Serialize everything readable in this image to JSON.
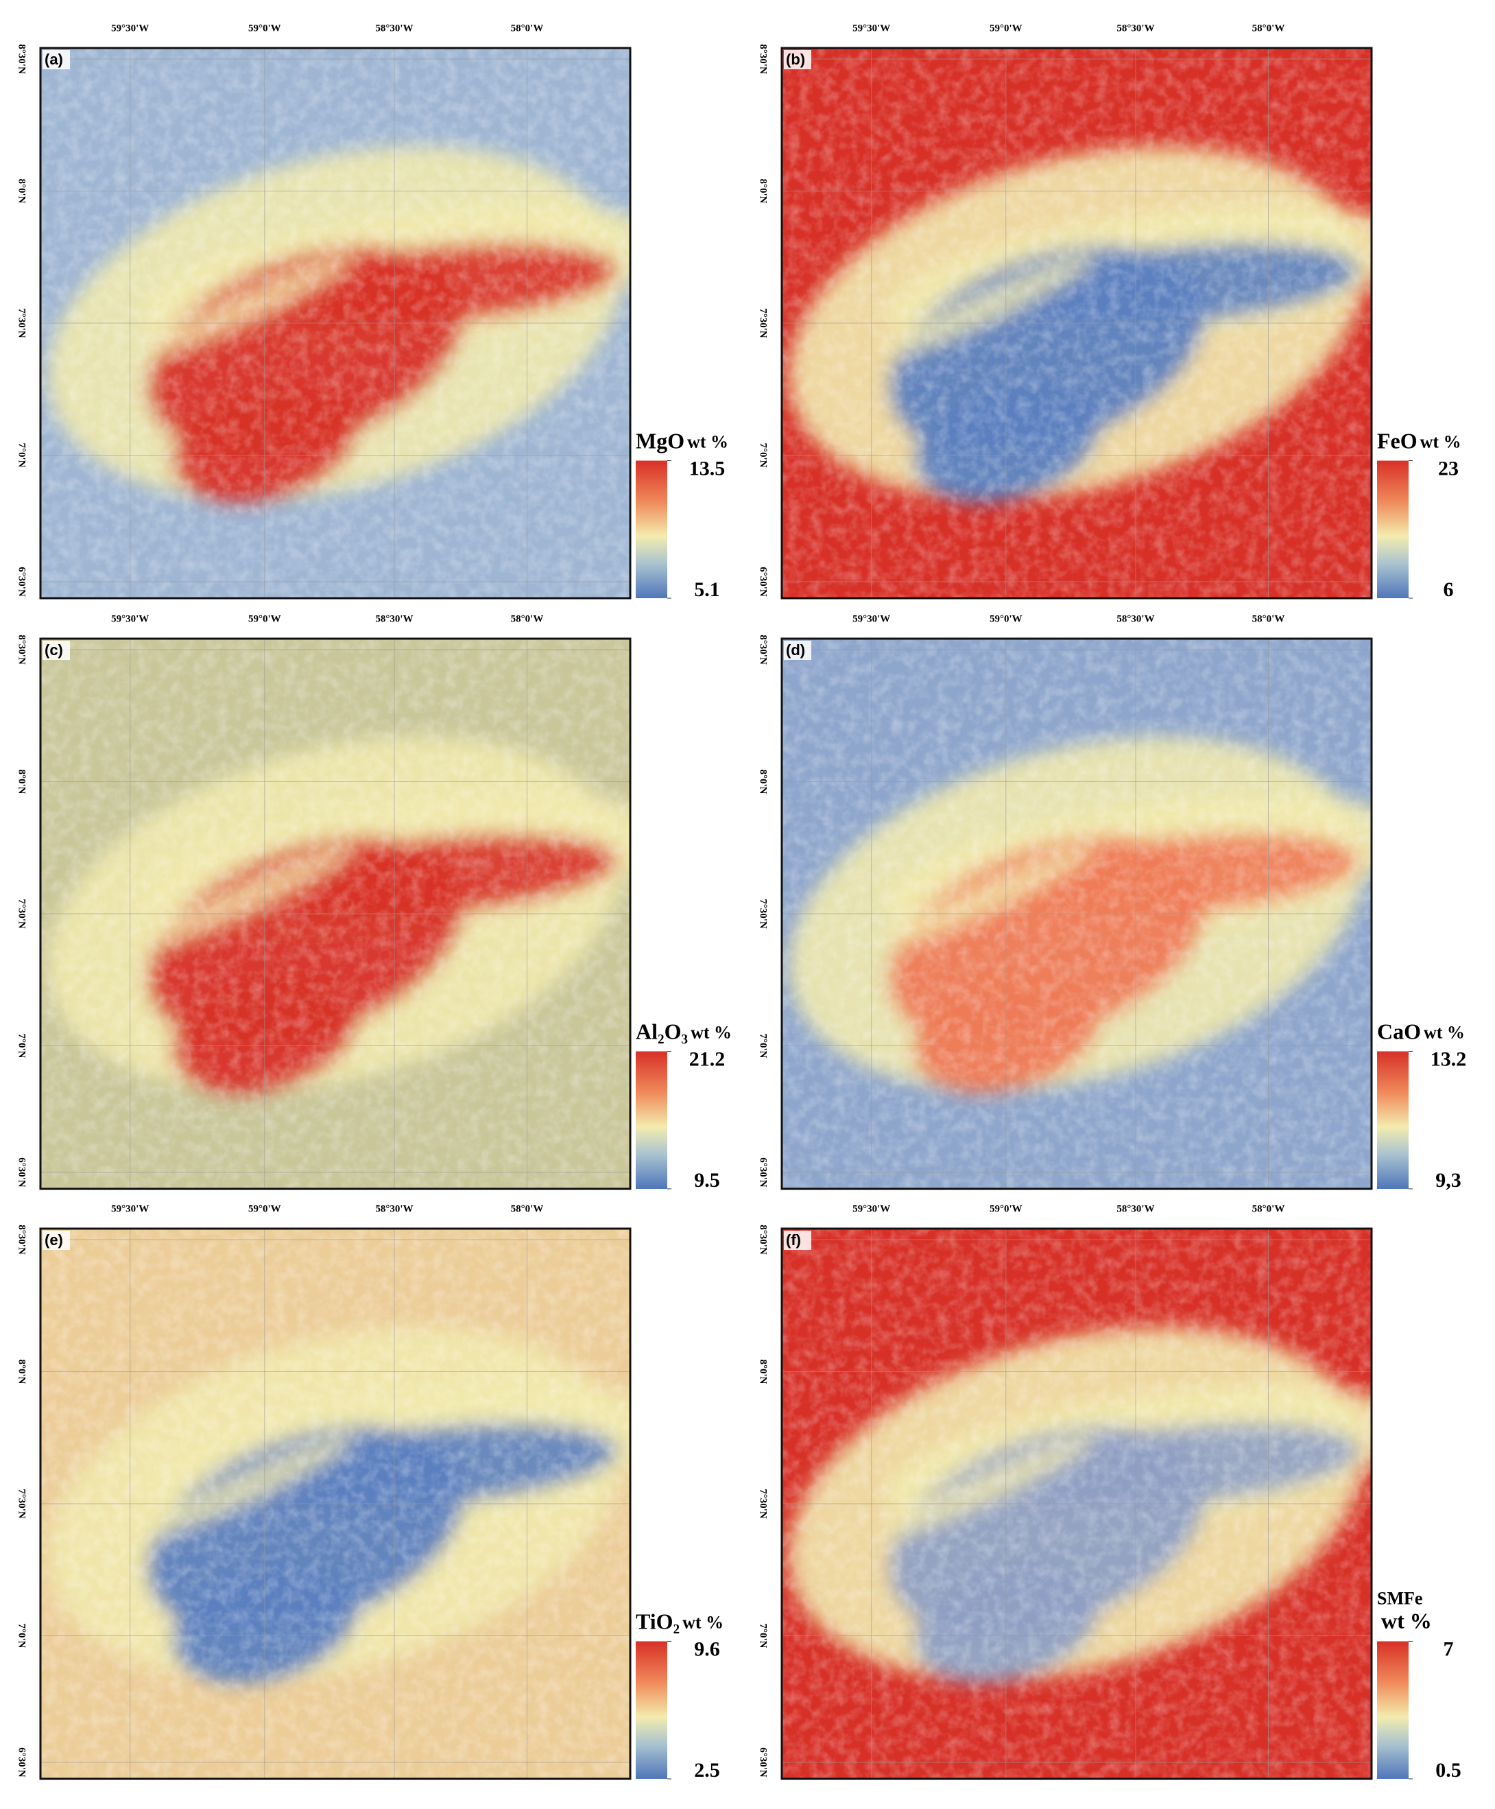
{
  "figure": {
    "lon_labels": [
      "59°30'W",
      "59°0'W",
      "58°30'W",
      "58°0'W"
    ],
    "lat_labels": [
      "8°30'N",
      "8°0'N",
      "7°30'N",
      "7°0'N",
      "6°30'N"
    ]
  },
  "panels": [
    {
      "label": "(a)",
      "oxide": "MgO",
      "unit": "wt %",
      "max": 13.5,
      "min": 5.1
    },
    {
      "label": "(b)",
      "oxide": "FeO",
      "unit": "wt %",
      "max": 23,
      "min": 6
    },
    {
      "label": "(c)",
      "oxide": "Al₂O₃",
      "unit": "wt %",
      "max": 21.2,
      "min": 9.5
    },
    {
      "label": "(d)",
      "oxide": "CaO",
      "unit": "wt %",
      "max": 13.2,
      "min": {
        "value": 9.3,
        "label": "9,3"
      }
    },
    {
      "label": "(e)",
      "oxide": "TiO₂",
      "unit": "wt %",
      "max": 9.6,
      "min": 2.5
    },
    {
      "label": "(f)",
      "oxide": "SMFe",
      "unit": "wt %",
      "max": 7,
      "min": 0.5
    }
  ]
}
